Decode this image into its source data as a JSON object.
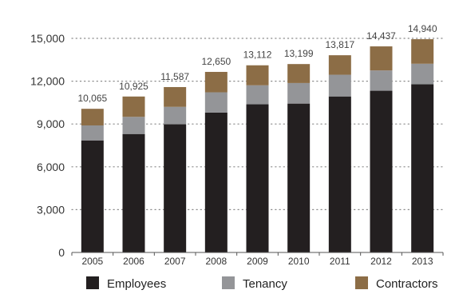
{
  "chart_data": {
    "type": "bar",
    "stacked": true,
    "categories": [
      "2005",
      "2006",
      "2007",
      "2008",
      "2009",
      "2010",
      "2011",
      "2012",
      "2013"
    ],
    "series": [
      {
        "name": "Employees",
        "color": "#231f20",
        "values": [
          7850,
          8300,
          8980,
          9800,
          10380,
          10430,
          10930,
          11330,
          11780
        ]
      },
      {
        "name": "Tenancy",
        "color": "#949598",
        "values": [
          1050,
          1200,
          1220,
          1420,
          1330,
          1440,
          1520,
          1420,
          1440
        ]
      },
      {
        "name": "Contractors",
        "color": "#8c6d46",
        "values": [
          1165,
          1425,
          1387,
          1430,
          1402,
          1329,
          1367,
          1687,
          1720
        ]
      }
    ],
    "totals": [
      "10,065",
      "10,925",
      "11,587",
      "12,650",
      "13,112",
      "13,199",
      "13,817",
      "14,437",
      "14,940"
    ],
    "y_ticks": [
      "0",
      "3,000",
      "6,000",
      "9,000",
      "12,000",
      "15,000"
    ],
    "y_tick_values": [
      0,
      3000,
      6000,
      9000,
      12000,
      15000
    ],
    "ylim": [
      0,
      15000
    ],
    "title": "",
    "xlabel": "",
    "ylabel": "",
    "grid": "dotted horizontal",
    "legend_position": "bottom"
  }
}
